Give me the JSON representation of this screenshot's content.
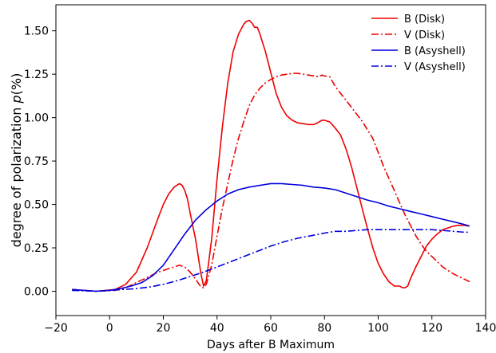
{
  "chart_data": {
    "type": "line",
    "xlabel": "Days after B Maximum",
    "ylabel": "degree of polarization ",
    "ylabel_symbol": "p",
    "ylabel_unit": "(%)",
    "xlim": [
      -20,
      140
    ],
    "ylim": [
      -0.14,
      1.65
    ],
    "xticks": [
      -20,
      0,
      20,
      40,
      60,
      80,
      100,
      120,
      140
    ],
    "xtick_labels": [
      "−20",
      "0",
      "20",
      "40",
      "60",
      "80",
      "100",
      "120",
      "140"
    ],
    "yticks": [
      0.0,
      0.25,
      0.5,
      0.75,
      1.0,
      1.25,
      1.5
    ],
    "ytick_labels": [
      "0.00",
      "0.25",
      "0.50",
      "0.75",
      "1.00",
      "1.25",
      "1.50"
    ],
    "grid": false,
    "legend_position": "top-right",
    "series": [
      {
        "name": "B (Disk)",
        "color": "#ee0000",
        "dash": "solid",
        "x": [
          -14,
          -5,
          2,
          6,
          10,
          14,
          18,
          20,
          22,
          24,
          26,
          27,
          28,
          29,
          30,
          32,
          34,
          35,
          36,
          38,
          40,
          42,
          44,
          46,
          48,
          50,
          51,
          52,
          53,
          54,
          55,
          56,
          58,
          60,
          62,
          64,
          66,
          68,
          70,
          72,
          74,
          76,
          78,
          79,
          80,
          82,
          84,
          86,
          88,
          90,
          92,
          94,
          96,
          98,
          100,
          102,
          104,
          106,
          108,
          109,
          110,
          111,
          112,
          114,
          116,
          118,
          120,
          122,
          124,
          126,
          128,
          130,
          132,
          134
        ],
        "y": [
          0.01,
          0.0,
          0.01,
          0.04,
          0.11,
          0.25,
          0.42,
          0.5,
          0.56,
          0.6,
          0.62,
          0.61,
          0.58,
          0.53,
          0.45,
          0.3,
          0.1,
          0.03,
          0.06,
          0.3,
          0.65,
          0.95,
          1.2,
          1.38,
          1.48,
          1.54,
          1.555,
          1.56,
          1.545,
          1.52,
          1.52,
          1.48,
          1.38,
          1.26,
          1.14,
          1.06,
          1.01,
          0.985,
          0.97,
          0.965,
          0.96,
          0.96,
          0.975,
          0.985,
          0.985,
          0.975,
          0.94,
          0.9,
          0.82,
          0.72,
          0.6,
          0.48,
          0.36,
          0.25,
          0.16,
          0.1,
          0.055,
          0.03,
          0.03,
          0.02,
          0.02,
          0.03,
          0.07,
          0.14,
          0.2,
          0.26,
          0.3,
          0.33,
          0.355,
          0.365,
          0.375,
          0.38,
          0.38,
          0.375
        ]
      },
      {
        "name": "V (Disk)",
        "color": "#ee0000",
        "dash": "dashdot",
        "x": [
          -14,
          -5,
          2,
          6,
          10,
          14,
          18,
          20,
          22,
          24,
          26,
          28,
          30,
          32,
          34,
          35,
          36,
          38,
          40,
          42,
          44,
          46,
          48,
          50,
          52,
          54,
          56,
          58,
          60,
          62,
          64,
          66,
          68,
          70,
          72,
          74,
          76,
          78,
          79,
          80,
          82,
          84,
          86,
          88,
          90,
          92,
          94,
          96,
          98,
          100,
          102,
          104,
          106,
          108,
          110,
          112,
          114,
          116,
          118,
          120,
          122,
          124,
          126,
          128,
          130,
          132,
          134
        ],
        "y": [
          0.01,
          0.0,
          0.005,
          0.02,
          0.05,
          0.08,
          0.11,
          0.12,
          0.13,
          0.14,
          0.15,
          0.14,
          0.11,
          0.07,
          0.025,
          0.02,
          0.04,
          0.15,
          0.32,
          0.48,
          0.62,
          0.76,
          0.88,
          0.98,
          1.07,
          1.13,
          1.17,
          1.2,
          1.22,
          1.235,
          1.245,
          1.25,
          1.255,
          1.255,
          1.25,
          1.245,
          1.24,
          1.235,
          1.245,
          1.24,
          1.235,
          1.18,
          1.14,
          1.1,
          1.06,
          1.02,
          0.98,
          0.93,
          0.88,
          0.8,
          0.72,
          0.65,
          0.58,
          0.51,
          0.44,
          0.38,
          0.32,
          0.27,
          0.23,
          0.2,
          0.17,
          0.14,
          0.12,
          0.1,
          0.085,
          0.07,
          0.055
        ]
      },
      {
        "name": "B (Asyshell)",
        "color": "#0000dd",
        "dash": "solid",
        "x": [
          -14,
          -5,
          0,
          4,
          8,
          12,
          16,
          20,
          24,
          28,
          32,
          36,
          40,
          44,
          48,
          52,
          54,
          56,
          58,
          60,
          64,
          68,
          72,
          76,
          80,
          84,
          88,
          92,
          96,
          100,
          104,
          108,
          112,
          116,
          120,
          124,
          128,
          132,
          134
        ],
        "y": [
          0.01,
          0.0,
          0.005,
          0.015,
          0.03,
          0.05,
          0.09,
          0.15,
          0.24,
          0.33,
          0.41,
          0.47,
          0.52,
          0.56,
          0.585,
          0.6,
          0.605,
          0.61,
          0.615,
          0.62,
          0.62,
          0.615,
          0.61,
          0.6,
          0.595,
          0.585,
          0.565,
          0.545,
          0.525,
          0.51,
          0.49,
          0.475,
          0.46,
          0.445,
          0.43,
          0.415,
          0.4,
          0.385,
          0.375
        ]
      },
      {
        "name": "V (Asyshell)",
        "color": "#0000dd",
        "dash": "dashdot",
        "x": [
          -14,
          -5,
          0,
          5,
          10,
          15,
          20,
          25,
          30,
          35,
          40,
          45,
          50,
          55,
          60,
          65,
          70,
          75,
          80,
          84,
          88,
          92,
          96,
          100,
          104,
          108,
          112,
          116,
          120,
          124,
          128,
          132,
          134
        ],
        "y": [
          0.005,
          0.0,
          0.005,
          0.01,
          0.015,
          0.025,
          0.04,
          0.06,
          0.085,
          0.11,
          0.14,
          0.17,
          0.2,
          0.23,
          0.26,
          0.285,
          0.305,
          0.32,
          0.335,
          0.345,
          0.345,
          0.35,
          0.355,
          0.355,
          0.355,
          0.355,
          0.355,
          0.355,
          0.355,
          0.35,
          0.345,
          0.34,
          0.34
        ]
      }
    ]
  }
}
